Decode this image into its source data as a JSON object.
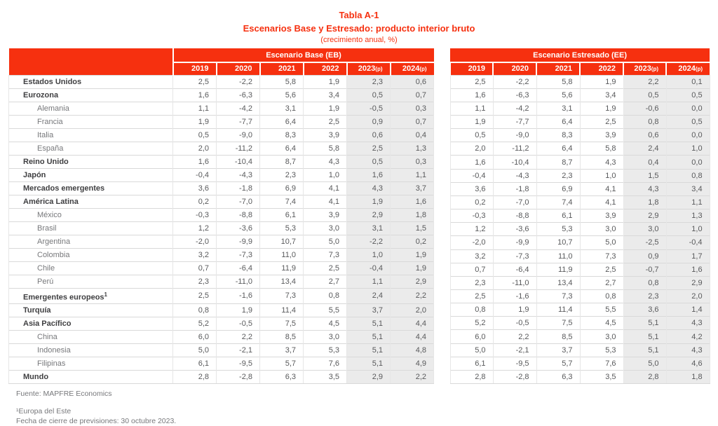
{
  "title": {
    "table_number": "Tabla A-1",
    "main": "Escenarios Base y Estresado: producto interior bruto",
    "subtitle": "(crecimiento anual, %)"
  },
  "colors": {
    "accent_red": "#f6300f",
    "shaded_column_bg": "#ebebeb",
    "bold_label_text": "#3f3f41",
    "sub_label_text": "#77787b",
    "number_text": "#58595b"
  },
  "columns": [
    {
      "year": "2019",
      "suffix": "",
      "shaded": false
    },
    {
      "year": "2020",
      "suffix": "",
      "shaded": false
    },
    {
      "year": "2021",
      "suffix": "",
      "shaded": false
    },
    {
      "year": "2022",
      "suffix": "",
      "shaded": false
    },
    {
      "year": "2023",
      "suffix": "(p)",
      "shaded": true
    },
    {
      "year": "2024",
      "suffix": "(p)",
      "shaded": true
    }
  ],
  "tables": {
    "base": {
      "header": "Escenario Base (EB)"
    },
    "stressed": {
      "header": "Escenario Estresado (EE)"
    }
  },
  "rows": [
    {
      "label": "Estados Unidos",
      "sup": "",
      "bold": true,
      "eb": [
        "2,5",
        "-2,2",
        "5,8",
        "1,9",
        "2,3",
        "0,6"
      ],
      "ee": [
        "2,5",
        "-2,2",
        "5,8",
        "1,9",
        "2,2",
        "0,1"
      ]
    },
    {
      "label": "Eurozona",
      "sup": "",
      "bold": true,
      "eb": [
        "1,6",
        "-6,3",
        "5,6",
        "3,4",
        "0,5",
        "0,7"
      ],
      "ee": [
        "1,6",
        "-6,3",
        "5,6",
        "3,4",
        "0,5",
        "0,5"
      ]
    },
    {
      "label": "Alemania",
      "sup": "",
      "bold": false,
      "eb": [
        "1,1",
        "-4,2",
        "3,1",
        "1,9",
        "-0,5",
        "0,3"
      ],
      "ee": [
        "1,1",
        "-4,2",
        "3,1",
        "1,9",
        "-0,6",
        "0,0"
      ]
    },
    {
      "label": "Francia",
      "sup": "",
      "bold": false,
      "eb": [
        "1,9",
        "-7,7",
        "6,4",
        "2,5",
        "0,9",
        "0,7"
      ],
      "ee": [
        "1,9",
        "-7,7",
        "6,4",
        "2,5",
        "0,8",
        "0,5"
      ]
    },
    {
      "label": "Italia",
      "sup": "",
      "bold": false,
      "eb": [
        "0,5",
        "-9,0",
        "8,3",
        "3,9",
        "0,6",
        "0,4"
      ],
      "ee": [
        "0,5",
        "-9,0",
        "8,3",
        "3,9",
        "0,6",
        "0,0"
      ]
    },
    {
      "label": "España",
      "sup": "",
      "bold": false,
      "eb": [
        "2,0",
        "-11,2",
        "6,4",
        "5,8",
        "2,5",
        "1,3"
      ],
      "ee": [
        "2,0",
        "-11,2",
        "6,4",
        "5,8",
        "2,4",
        "1,0"
      ]
    },
    {
      "label": "Reino Unido",
      "sup": "",
      "bold": true,
      "eb": [
        "1,6",
        "-10,4",
        "8,7",
        "4,3",
        "0,5",
        "0,3"
      ],
      "ee": [
        "1,6",
        "-10,4",
        "8,7",
        "4,3",
        "0,4",
        "0,0"
      ]
    },
    {
      "label": "Japón",
      "sup": "",
      "bold": true,
      "eb": [
        "-0,4",
        "-4,3",
        "2,3",
        "1,0",
        "1,6",
        "1,1"
      ],
      "ee": [
        "-0,4",
        "-4,3",
        "2,3",
        "1,0",
        "1,5",
        "0,8"
      ]
    },
    {
      "label": "Mercados emergentes",
      "sup": "",
      "bold": true,
      "eb": [
        "3,6",
        "-1,8",
        "6,9",
        "4,1",
        "4,3",
        "3,7"
      ],
      "ee": [
        "3,6",
        "-1,8",
        "6,9",
        "4,1",
        "4,3",
        "3,4"
      ]
    },
    {
      "label": "América Latina",
      "sup": "",
      "bold": true,
      "eb": [
        "0,2",
        "-7,0",
        "7,4",
        "4,1",
        "1,9",
        "1,6"
      ],
      "ee": [
        "0,2",
        "-7,0",
        "7,4",
        "4,1",
        "1,8",
        "1,1"
      ]
    },
    {
      "label": "México",
      "sup": "",
      "bold": false,
      "eb": [
        "-0,3",
        "-8,8",
        "6,1",
        "3,9",
        "2,9",
        "1,8"
      ],
      "ee": [
        "-0,3",
        "-8,8",
        "6,1",
        "3,9",
        "2,9",
        "1,3"
      ]
    },
    {
      "label": "Brasil",
      "sup": "",
      "bold": false,
      "eb": [
        "1,2",
        "-3,6",
        "5,3",
        "3,0",
        "3,1",
        "1,5"
      ],
      "ee": [
        "1,2",
        "-3,6",
        "5,3",
        "3,0",
        "3,0",
        "1,0"
      ]
    },
    {
      "label": "Argentina",
      "sup": "",
      "bold": false,
      "eb": [
        "-2,0",
        "-9,9",
        "10,7",
        "5,0",
        "-2,2",
        "0,2"
      ],
      "ee": [
        "-2,0",
        "-9,9",
        "10,7",
        "5,0",
        "-2,5",
        "-0,4"
      ]
    },
    {
      "label": "Colombia",
      "sup": "",
      "bold": false,
      "eb": [
        "3,2",
        "-7,3",
        "11,0",
        "7,3",
        "1,0",
        "1,9"
      ],
      "ee": [
        "3,2",
        "-7,3",
        "11,0",
        "7,3",
        "0,9",
        "1,7"
      ]
    },
    {
      "label": "Chile",
      "sup": "",
      "bold": false,
      "eb": [
        "0,7",
        "-6,4",
        "11,9",
        "2,5",
        "-0,4",
        "1,9"
      ],
      "ee": [
        "0,7",
        "-6,4",
        "11,9",
        "2,5",
        "-0,7",
        "1,6"
      ]
    },
    {
      "label": "Perú",
      "sup": "",
      "bold": false,
      "eb": [
        "2,3",
        "-11,0",
        "13,4",
        "2,7",
        "1,1",
        "2,9"
      ],
      "ee": [
        "2,3",
        "-11,0",
        "13,4",
        "2,7",
        "0,8",
        "2,9"
      ]
    },
    {
      "label": "Emergentes europeos",
      "sup": "1",
      "bold": true,
      "eb": [
        "2,5",
        "-1,6",
        "7,3",
        "0,8",
        "2,4",
        "2,2"
      ],
      "ee": [
        "2,5",
        "-1,6",
        "7,3",
        "0,8",
        "2,3",
        "2,0"
      ]
    },
    {
      "label": "Turquía",
      "sup": "",
      "bold": true,
      "eb": [
        "0,8",
        "1,9",
        "11,4",
        "5,5",
        "3,7",
        "2,0"
      ],
      "ee": [
        "0,8",
        "1,9",
        "11,4",
        "5,5",
        "3,6",
        "1,4"
      ]
    },
    {
      "label": "Asia Pacífico",
      "sup": "",
      "bold": true,
      "eb": [
        "5,2",
        "-0,5",
        "7,5",
        "4,5",
        "5,1",
        "4,4"
      ],
      "ee": [
        "5,2",
        "-0,5",
        "7,5",
        "4,5",
        "5,1",
        "4,3"
      ]
    },
    {
      "label": "China",
      "sup": "",
      "bold": false,
      "eb": [
        "6,0",
        "2,2",
        "8,5",
        "3,0",
        "5,1",
        "4,4"
      ],
      "ee": [
        "6,0",
        "2,2",
        "8,5",
        "3,0",
        "5,1",
        "4,2"
      ]
    },
    {
      "label": "Indonesia",
      "sup": "",
      "bold": false,
      "eb": [
        "5,0",
        "-2,1",
        "3,7",
        "5,3",
        "5,1",
        "4,8"
      ],
      "ee": [
        "5,0",
        "-2,1",
        "3,7",
        "5,3",
        "5,1",
        "4,3"
      ]
    },
    {
      "label": "Filipinas",
      "sup": "",
      "bold": false,
      "eb": [
        "6,1",
        "-9,5",
        "5,7",
        "7,6",
        "5,1",
        "4,9"
      ],
      "ee": [
        "6,1",
        "-9,5",
        "5,7",
        "7,6",
        "5,0",
        "4,6"
      ]
    },
    {
      "label": "Mundo",
      "sup": "",
      "bold": true,
      "eb": [
        "2,8",
        "-2,8",
        "6,3",
        "3,5",
        "2,9",
        "2,2"
      ],
      "ee": [
        "2,8",
        "-2,8",
        "6,3",
        "3,5",
        "2,8",
        "1,8"
      ]
    }
  ],
  "footer": {
    "source": "Fuente: MAPFRE Economics",
    "note1": "¹Europa del Este",
    "note2": "Fecha de cierre de previsiones: 30 octubre 2023."
  }
}
